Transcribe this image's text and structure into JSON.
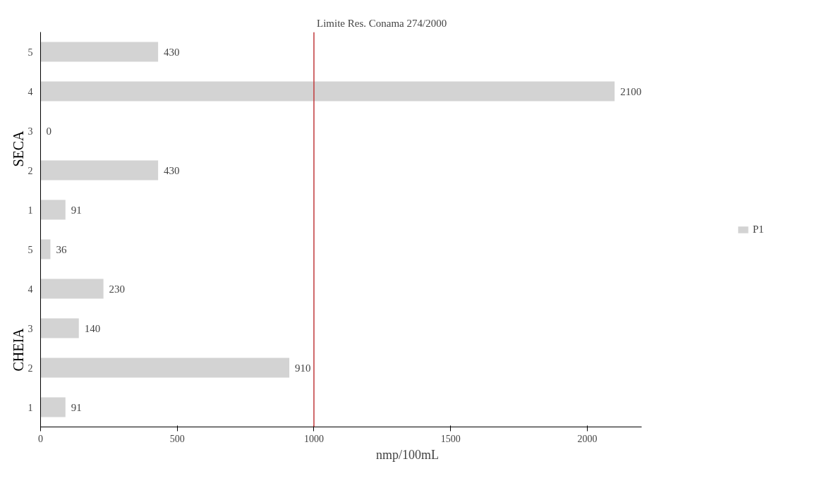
{
  "chart_data": {
    "type": "bar",
    "orientation": "horizontal",
    "xlabel": "nmp/100mL",
    "categories": [
      "5",
      "4",
      "3",
      "2",
      "1",
      "5",
      "4",
      "3",
      "2",
      "1"
    ],
    "series": [
      {
        "name": "P1",
        "color": "#d3d3d3",
        "values": [
          430,
          2100,
          0,
          430,
          91,
          36,
          230,
          140,
          910,
          91
        ]
      }
    ],
    "xlim": [
      0,
      2200
    ],
    "xticks": [
      0,
      500,
      1000,
      1500,
      2000
    ],
    "data_labels": true,
    "legend": "right",
    "grid": false,
    "ref_lines": [
      {
        "axis": "x",
        "value": 1000,
        "label": "Limite Res. Conama 274/2000",
        "color": "#c0393b"
      }
    ],
    "annotations": [
      "SECA",
      "CHEIA"
    ]
  }
}
